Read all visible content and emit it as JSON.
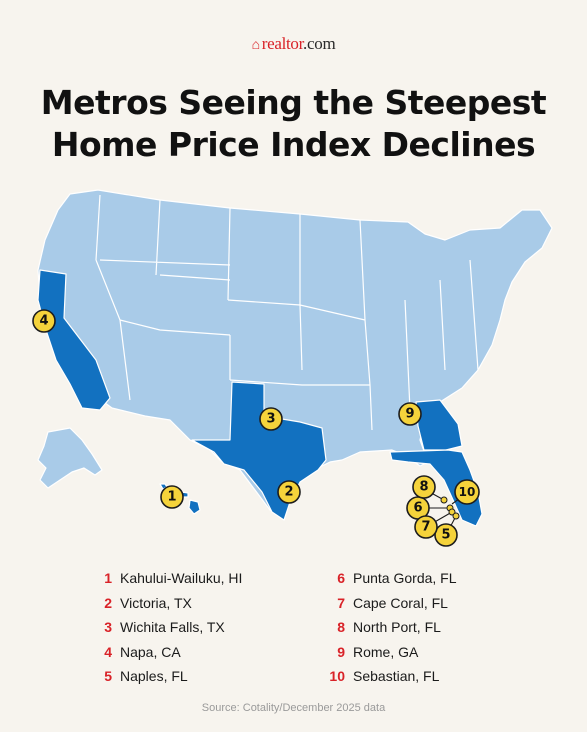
{
  "header": {
    "logo_text": "realtor",
    "logo_suffix": ".com",
    "title_line1": "Metros Seeing the Steepest",
    "title_line2": "Home Price Index Declines"
  },
  "colors": {
    "background": "#f7f4ee",
    "land": "#a9cbe8",
    "highlight": "#1271c0",
    "marker": "#f5d33b",
    "rank_number": "#d92228"
  },
  "highlighted_states": [
    "HI",
    "CA",
    "TX",
    "GA",
    "FL"
  ],
  "markers": [
    {
      "rank": "1",
      "state": "HI"
    },
    {
      "rank": "2",
      "state": "TX"
    },
    {
      "rank": "3",
      "state": "TX"
    },
    {
      "rank": "4",
      "state": "CA"
    },
    {
      "rank": "5",
      "state": "FL"
    },
    {
      "rank": "6",
      "state": "FL"
    },
    {
      "rank": "7",
      "state": "FL"
    },
    {
      "rank": "8",
      "state": "FL"
    },
    {
      "rank": "9",
      "state": "GA"
    },
    {
      "rank": "10",
      "state": "FL"
    }
  ],
  "legend": [
    {
      "rank": "1",
      "name": "Kahului-Wailuku, HI"
    },
    {
      "rank": "2",
      "name": "Victoria, TX"
    },
    {
      "rank": "3",
      "name": "Wichita Falls, TX"
    },
    {
      "rank": "4",
      "name": "Napa, CA"
    },
    {
      "rank": "5",
      "name": "Naples, FL"
    },
    {
      "rank": "6",
      "name": "Punta Gorda, FL"
    },
    {
      "rank": "7",
      "name": "Cape Coral, FL"
    },
    {
      "rank": "8",
      "name": "North Port, FL"
    },
    {
      "rank": "9",
      "name": "Rome, GA"
    },
    {
      "rank": "10",
      "name": "Sebastian, FL"
    }
  ],
  "footer": {
    "source": "Source: Cotality/December 2025 data"
  }
}
